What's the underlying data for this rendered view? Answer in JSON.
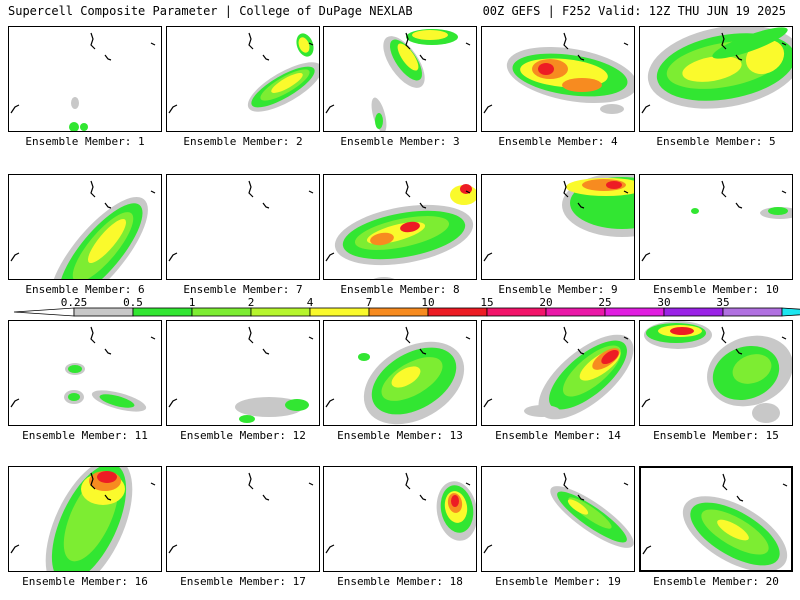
{
  "header": {
    "title": "Supercell Composite Parameter | College of DuPage NEXLAB",
    "run_info": "00Z GEFS | F252 Valid: 12Z THU JUN 19 2025"
  },
  "panel_prefix": "Ensemble Member: ",
  "members": [
    {
      "number": "1",
      "label": "Ensemble Member: 1"
    },
    {
      "number": "2",
      "label": "Ensemble Member: 2"
    },
    {
      "number": "3",
      "label": "Ensemble Member: 3"
    },
    {
      "number": "4",
      "label": "Ensemble Member: 4"
    },
    {
      "number": "5",
      "label": "Ensemble Member: 5"
    },
    {
      "number": "6",
      "label": "Ensemble Member: 6"
    },
    {
      "number": "7",
      "label": "Ensemble Member: 7"
    },
    {
      "number": "8",
      "label": "Ensemble Member: 8"
    },
    {
      "number": "9",
      "label": "Ensemble Member: 9"
    },
    {
      "number": "10",
      "label": "Ensemble Member: 10"
    },
    {
      "number": "11",
      "label": "Ensemble Member: 11"
    },
    {
      "number": "12",
      "label": "Ensemble Member: 12"
    },
    {
      "number": "13",
      "label": "Ensemble Member: 13"
    },
    {
      "number": "14",
      "label": "Ensemble Member: 14"
    },
    {
      "number": "15",
      "label": "Ensemble Member: 15"
    },
    {
      "number": "16",
      "label": "Ensemble Member: 16"
    },
    {
      "number": "17",
      "label": "Ensemble Member: 17"
    },
    {
      "number": "18",
      "label": "Ensemble Member: 18"
    },
    {
      "number": "19",
      "label": "Ensemble Member: 19"
    },
    {
      "number": "20",
      "label": "Ensemble Member: 20"
    }
  ],
  "selected_member": "20",
  "colorbar": {
    "labels": [
      "0.25",
      "0.5",
      "1",
      "2",
      "4",
      "7",
      "10",
      "15",
      "20",
      "25",
      "30",
      "35"
    ],
    "colors": [
      "#c8c8c8",
      "#32e632",
      "#7ded32",
      "#b6f52d",
      "#fafa2c",
      "#f78b20",
      "#ed1c24",
      "#f2146a",
      "#ea18a8",
      "#e01ee0",
      "#9a23e6",
      "#b070e0",
      "#1de6f0"
    ]
  }
}
